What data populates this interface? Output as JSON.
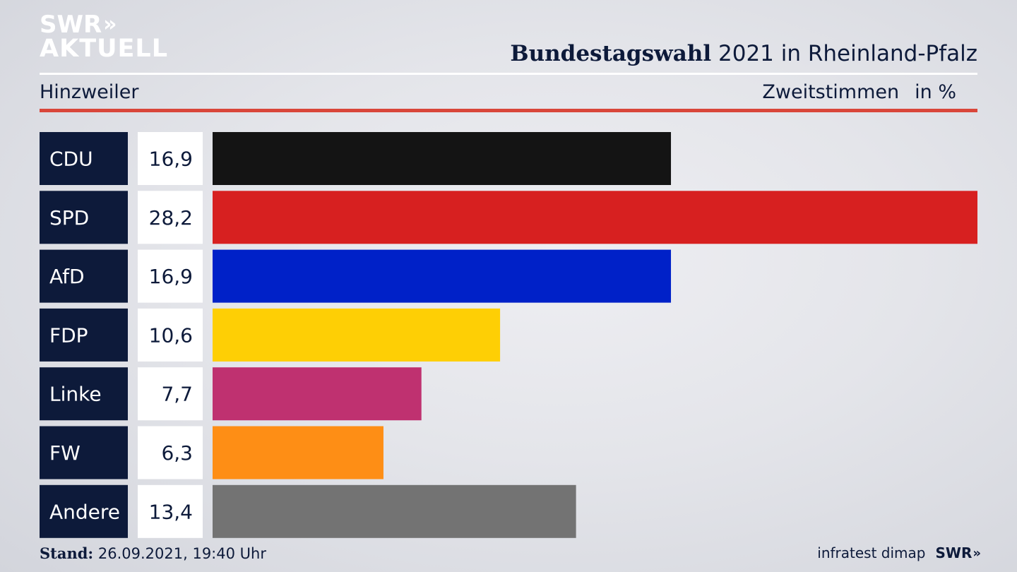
{
  "logo": {
    "line1": "SWR",
    "line1_chevrons": "»",
    "line2": "AKTUELL"
  },
  "header": {
    "title_bold": "Bundestagswahl",
    "title_rest": "2021 in Rheinland-Pfalz",
    "location": "Hinzweiler",
    "measure": "Zweitstimmen",
    "unit": "in %"
  },
  "chart_data": {
    "type": "bar",
    "orientation": "horizontal",
    "title": "Bundestagswahl 2021 in Rheinland-Pfalz",
    "subtitle": "Hinzweiler",
    "xlabel": "Zweitstimmen in %",
    "categories": [
      "CDU",
      "SPD",
      "AfD",
      "FDP",
      "Linke",
      "FW",
      "Andere"
    ],
    "values": [
      16.9,
      28.2,
      16.9,
      10.6,
      7.7,
      6.3,
      13.4
    ],
    "value_labels": [
      "16,9",
      "28,2",
      "16,9",
      "10,6",
      "7,7",
      "6,3",
      "13,4"
    ],
    "colors": [
      "#141414",
      "#d72020",
      "#0021c8",
      "#fecf05",
      "#bf3170",
      "#fe8e15",
      "#737373"
    ],
    "xlim": [
      0,
      28.2
    ],
    "grid": false,
    "legend": "none"
  },
  "footer": {
    "stand_label": "Stand:",
    "stand_value": "26.09.2021, 19:40 Uhr",
    "source": "infratest dimap",
    "brand": "SWR",
    "brand_chevrons": "»"
  },
  "colors": {
    "navy": "#0d1a3a",
    "accent_red": "#d9463a"
  }
}
